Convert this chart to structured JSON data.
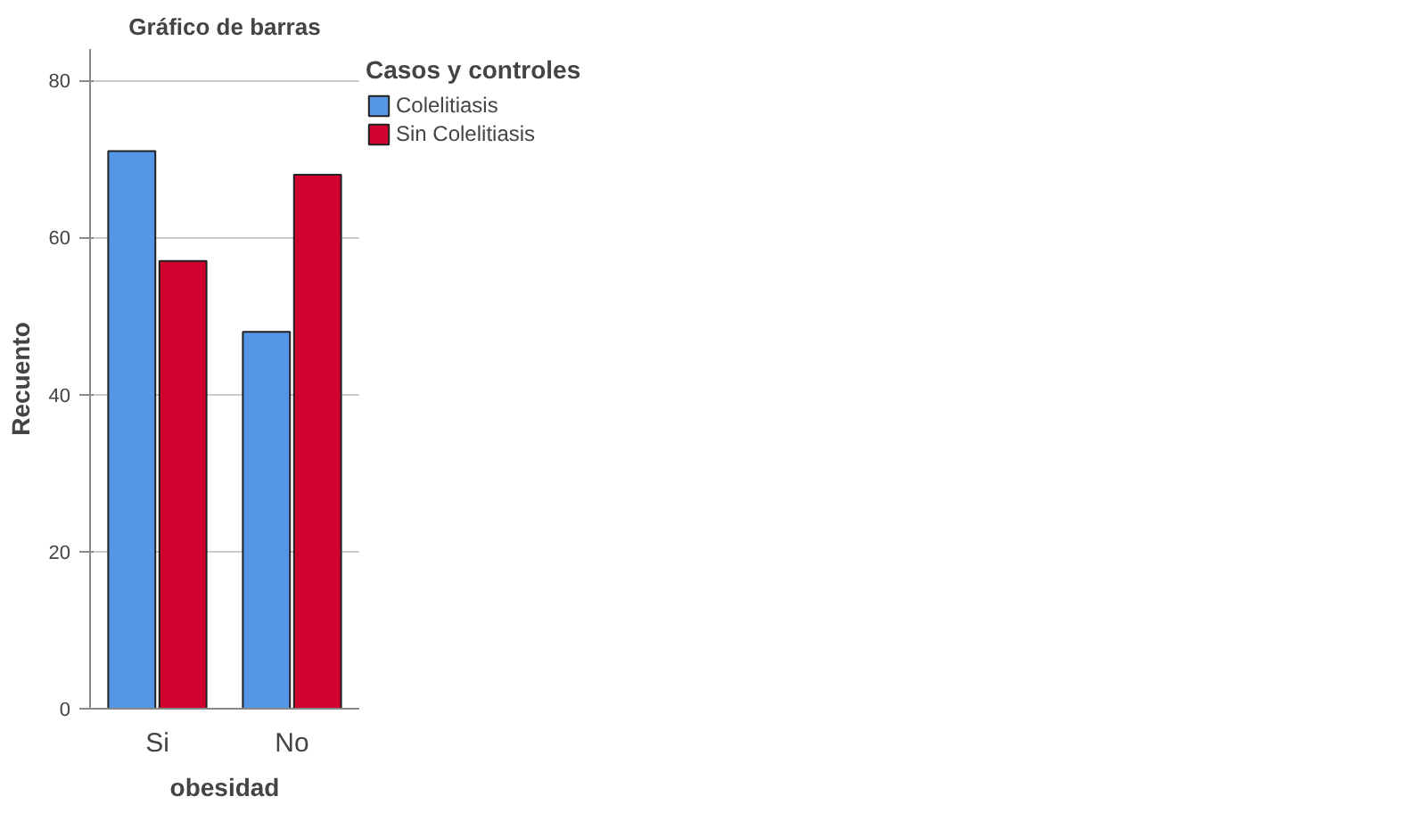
{
  "chart_data": {
    "type": "bar",
    "title": "Gráfico de barras",
    "xlabel": "obesidad",
    "ylabel": "Recuento",
    "legend_title": "Casos y controles",
    "categories": [
      "Si",
      "No"
    ],
    "series": [
      {
        "name": "Colelitiasis",
        "color": "#5596e6",
        "values": [
          71,
          48
        ]
      },
      {
        "name": "Sin Colelitiasis",
        "color": "#d1002e",
        "values": [
          57,
          68
        ]
      }
    ],
    "ylim": [
      0,
      84
    ],
    "yticks": [
      0,
      20,
      40,
      60,
      80
    ],
    "grid": "y",
    "legend": "top right"
  }
}
